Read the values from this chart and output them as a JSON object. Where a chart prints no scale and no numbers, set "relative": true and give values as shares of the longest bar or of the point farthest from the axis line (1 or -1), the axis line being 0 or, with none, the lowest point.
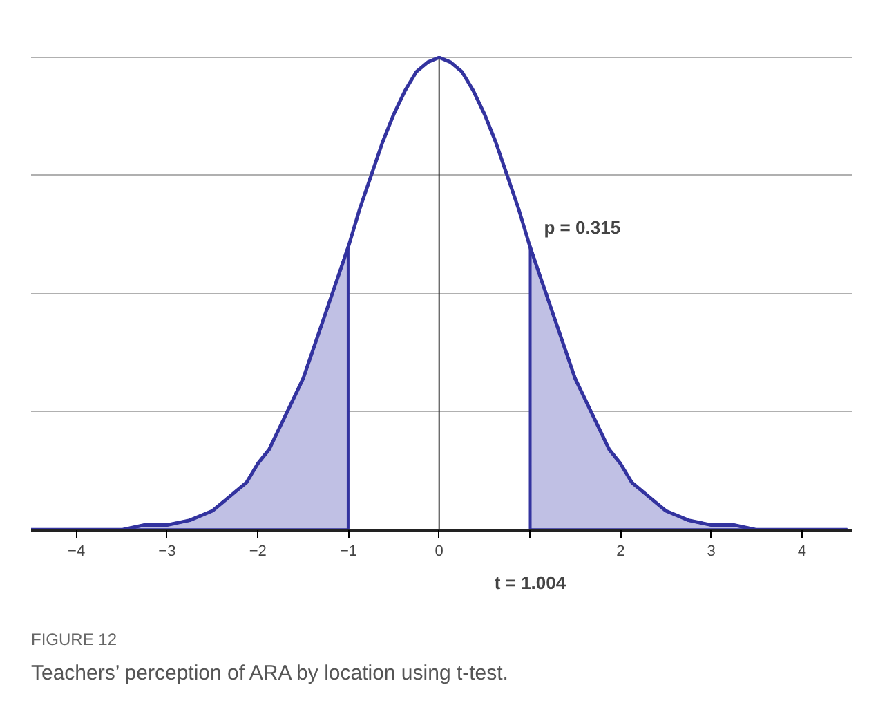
{
  "chart_data": {
    "type": "line",
    "title": "FIGURE 12",
    "subtitle": "Teachers’ perception of ARA by location using t-test.",
    "relative": true,
    "grid": "y",
    "marker": "none",
    "line_style": "solid",
    "x": [
      -4.5,
      -4.25,
      -4,
      -3.75,
      -3.5,
      -3.25,
      -3,
      -2.75,
      -2.5,
      -2.375,
      -2.25,
      -2.125,
      -2,
      -1.875,
      -1.75,
      -1.625,
      -1.5,
      -1.375,
      -1.25,
      -1.125,
      -1,
      -0.875,
      -0.75,
      -0.625,
      -0.5,
      -0.375,
      -0.25,
      -0.125,
      0,
      0.125,
      0.25,
      0.375,
      0.5,
      0.625,
      0.75,
      0.875,
      1,
      1.125,
      1.25,
      1.375,
      1.5,
      1.625,
      1.75,
      1.875,
      2,
      2.125,
      2.25,
      2.375,
      2.5,
      2.75,
      3,
      3.25,
      3.5,
      3.75,
      4,
      4.25,
      4.5
    ],
    "xlim": [
      -4.5,
      4.55
    ],
    "xticks": [
      -4,
      -3,
      -2,
      -1,
      0,
      {
        "value": 1,
        "label": null
      },
      2,
      3,
      4
    ],
    "series": [
      {
        "type": "area",
        "color": "#c0c0e4",
        "x": [
          -4.5,
          -4.25,
          -4,
          -3.75,
          -3.5,
          -3.25,
          -3,
          -2.75,
          -2.5,
          -2.375,
          -2.25,
          -2.125,
          -2,
          -1.875,
          -1.75,
          -1.625,
          -1.5,
          -1.375,
          -1.25,
          -1.125,
          -1.004
        ],
        "values": [
          0,
          0,
          0,
          0,
          0,
          0.01,
          0.01,
          0.02,
          0.04,
          0.06,
          0.08,
          0.1,
          0.14,
          0.17,
          0.22,
          0.27,
          0.32,
          0.39,
          0.46,
          0.53,
          0.6
        ]
      },
      {
        "type": "area",
        "color": "#c0c0e4",
        "x": [
          1.004,
          1.125,
          1.25,
          1.375,
          1.5,
          1.625,
          1.75,
          1.875,
          2,
          2.125,
          2.25,
          2.375,
          2.5,
          2.75,
          3,
          3.25,
          3.5,
          3.75,
          4,
          4.25,
          4.5
        ],
        "values": [
          0.6,
          0.53,
          0.46,
          0.39,
          0.32,
          0.27,
          0.22,
          0.17,
          0.14,
          0.1,
          0.08,
          0.06,
          0.04,
          0.02,
          0.01,
          0.01,
          0,
          0,
          0,
          0,
          0
        ]
      },
      {
        "color": "#33339f",
        "values": [
          0,
          0,
          0,
          0,
          0,
          0.01,
          0.01,
          0.02,
          0.04,
          0.06,
          0.08,
          0.1,
          0.14,
          0.17,
          0.22,
          0.27,
          0.32,
          0.39,
          0.46,
          0.53,
          0.6,
          0.68,
          0.75,
          0.82,
          0.88,
          0.93,
          0.97,
          0.99,
          1,
          0.99,
          0.97,
          0.93,
          0.88,
          0.82,
          0.75,
          0.68,
          0.6,
          0.53,
          0.46,
          0.39,
          0.32,
          0.27,
          0.22,
          0.17,
          0.14,
          0.1,
          0.08,
          0.06,
          0.04,
          0.02,
          0.01,
          0.01,
          0,
          0,
          0,
          0,
          0
        ]
      }
    ],
    "ref_lines": [
      {
        "axis": "x",
        "value": 0,
        "color": "#333333"
      }
    ],
    "annotations": [
      {
        "text": "p = 0.315",
        "x": 1.004,
        "y": 0.6
      },
      {
        "text": "t = 1.004",
        "x": 1.004,
        "y": 0
      }
    ]
  }
}
